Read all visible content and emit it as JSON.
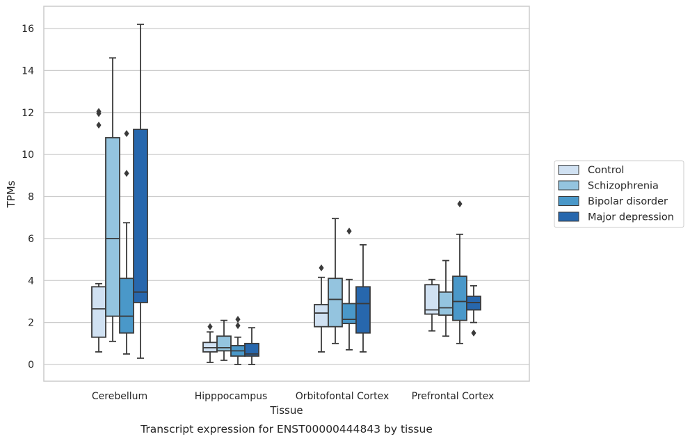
{
  "chart_data": {
    "type": "box",
    "title": "",
    "caption": "Transcript expression for ENST00000444843 by tissue",
    "xlabel": "Tissue",
    "ylabel": "TPMs",
    "ylim": [
      -0.8,
      17.0
    ],
    "yticks": [
      0,
      2,
      4,
      6,
      8,
      10,
      12,
      14,
      16
    ],
    "grid": true,
    "legend_position": "right",
    "categories": [
      "Cerebellum",
      "Hipppocampus",
      "Orbitofontal Cortex",
      "Prefrontal Cortex"
    ],
    "series": [
      {
        "name": "Control",
        "color": "#d0e1f2",
        "boxes": [
          {
            "whislo": 0.6,
            "q1": 1.3,
            "med": 2.65,
            "q3": 3.7,
            "whishi": 3.85,
            "fliers": [
              11.4,
              11.95,
              12.05
            ]
          },
          {
            "whislo": 0.1,
            "q1": 0.6,
            "med": 0.8,
            "q3": 1.05,
            "whishi": 1.55,
            "fliers": [
              1.8
            ]
          },
          {
            "whislo": 0.6,
            "q1": 1.8,
            "med": 2.45,
            "q3": 2.85,
            "whishi": 4.15,
            "fliers": [
              4.6
            ]
          },
          {
            "whislo": 1.6,
            "q1": 2.4,
            "med": 2.6,
            "q3": 3.8,
            "whishi": 4.05,
            "fliers": []
          }
        ]
      },
      {
        "name": "Schizophrenia",
        "color": "#94c4df",
        "boxes": [
          {
            "whislo": 1.1,
            "q1": 2.3,
            "med": 6.0,
            "q3": 10.8,
            "whishi": 14.6,
            "fliers": []
          },
          {
            "whislo": 0.2,
            "q1": 0.65,
            "med": 0.8,
            "q3": 1.35,
            "whishi": 2.1,
            "fliers": []
          },
          {
            "whislo": 1.0,
            "q1": 1.8,
            "med": 3.1,
            "q3": 4.1,
            "whishi": 6.95,
            "fliers": []
          },
          {
            "whislo": 1.35,
            "q1": 2.35,
            "med": 2.7,
            "q3": 3.45,
            "whishi": 4.95,
            "fliers": []
          }
        ]
      },
      {
        "name": "Bipolar disorder",
        "color": "#4a98c9",
        "boxes": [
          {
            "whislo": 0.5,
            "q1": 1.5,
            "med": 2.3,
            "q3": 4.1,
            "whishi": 6.75,
            "fliers": [
              9.1,
              11.0
            ]
          },
          {
            "whislo": 0.0,
            "q1": 0.4,
            "med": 0.65,
            "q3": 0.9,
            "whishi": 1.3,
            "fliers": [
              1.85,
              2.15
            ]
          },
          {
            "whislo": 0.7,
            "q1": 1.95,
            "med": 2.15,
            "q3": 2.9,
            "whishi": 4.05,
            "fliers": [
              6.35
            ]
          },
          {
            "whislo": 1.0,
            "q1": 2.1,
            "med": 3.0,
            "q3": 4.2,
            "whishi": 6.2,
            "fliers": [
              7.65
            ]
          }
        ]
      },
      {
        "name": "Major depression",
        "color": "#2767ad",
        "boxes": [
          {
            "whislo": 0.3,
            "q1": 2.95,
            "med": 3.45,
            "q3": 11.2,
            "whishi": 16.2,
            "fliers": []
          },
          {
            "whislo": 0.0,
            "q1": 0.4,
            "med": 0.5,
            "q3": 1.0,
            "whishi": 1.75,
            "fliers": []
          },
          {
            "whislo": 0.6,
            "q1": 1.5,
            "med": 2.9,
            "q3": 3.7,
            "whishi": 5.7,
            "fliers": []
          },
          {
            "whislo": 2.0,
            "q1": 2.6,
            "med": 2.95,
            "q3": 3.25,
            "whishi": 3.75,
            "fliers": [
              1.5
            ]
          }
        ]
      }
    ]
  }
}
